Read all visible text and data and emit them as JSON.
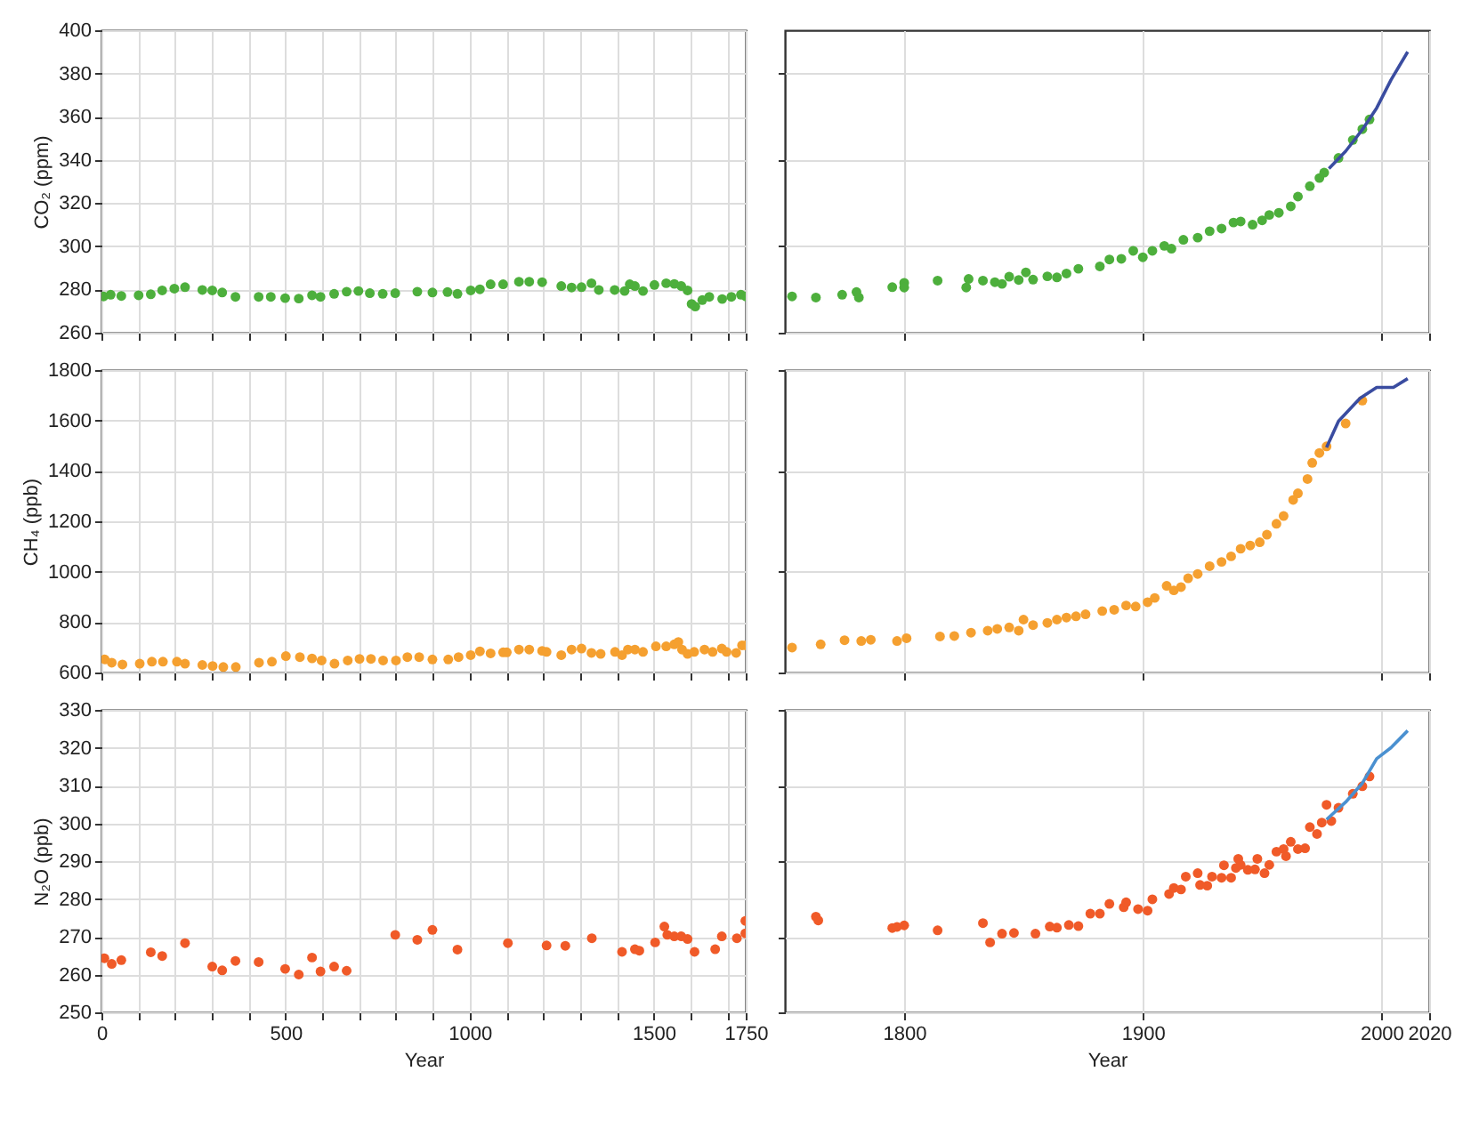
{
  "chart_data": [
    {
      "type": "scatter",
      "ylabel": "CO₂ (ppm)",
      "xlim": [
        0,
        1750
      ],
      "xticks": [
        0,
        {
          "value": 100,
          "label": null
        },
        {
          "value": 200,
          "label": null
        },
        {
          "value": 300,
          "label": null
        },
        {
          "value": 400,
          "label": null
        },
        500,
        {
          "value": 600,
          "label": null
        },
        {
          "value": 700,
          "label": null
        },
        {
          "value": 800,
          "label": null
        },
        {
          "value": 900,
          "label": null
        },
        1000,
        {
          "value": 1100,
          "label": null
        },
        {
          "value": 1200,
          "label": null
        },
        {
          "value": 1300,
          "label": null
        },
        {
          "value": 1400,
          "label": null
        },
        1500,
        {
          "value": 1600,
          "label": null
        },
        {
          "value": 1700,
          "label": null
        },
        1750
      ],
      "ylim": [
        260,
        400
      ],
      "yticks": [
        260,
        280,
        300,
        320,
        340,
        360,
        380,
        400
      ],
      "grid": true,
      "tick_labels": "y",
      "marker": "circle",
      "series": [
        {
          "type": "scatter",
          "color": "#4daf3c",
          "x": [
            6,
            25,
            54,
            101,
            134,
            165,
            198,
            227,
            274,
            301,
            328,
            364,
            427,
            460,
            499,
            536,
            572,
            595,
            632,
            666,
            698,
            729,
            764,
            798,
            858,
            899,
            940,
            967,
            1003,
            1028,
            1057,
            1091,
            1134,
            1162,
            1197,
            1249,
            1277,
            1304,
            1331,
            1351,
            1394,
            1421,
            1435,
            1449,
            1471,
            1502,
            1534,
            1556,
            1575,
            1592,
            1603,
            1613,
            1632,
            1651,
            1686,
            1711,
            1737,
            1750
          ],
          "values": [
            276.8,
            277.6,
            277,
            277.3,
            277.8,
            279.6,
            280.4,
            281.1,
            279.8,
            279.6,
            278.6,
            276.6,
            276.6,
            276.6,
            276,
            275.8,
            277.3,
            276.6,
            278,
            279,
            279.3,
            278.3,
            278,
            278.3,
            279,
            278.6,
            278.8,
            278,
            279.6,
            280.1,
            282.4,
            282.4,
            283.6,
            283.6,
            283.4,
            281.6,
            280.9,
            281.1,
            282.9,
            279.8,
            279.8,
            279.3,
            282.4,
            281.6,
            279.3,
            282.1,
            282.9,
            282.6,
            281.6,
            279.6,
            273.3,
            272.1,
            275.1,
            276.6,
            275.6,
            276.6,
            277.6,
            276.8
          ]
        }
      ]
    },
    {
      "type": "scatter",
      "xlim": [
        1750,
        2020
      ],
      "xticks": [
        1800,
        1900,
        2000,
        2020
      ],
      "ylim": [
        260,
        400
      ],
      "yticks": [
        260,
        280,
        300,
        320,
        340,
        360,
        380,
        400
      ],
      "grid": true,
      "tick_labels": false,
      "marker": "circle",
      "series": [
        {
          "type": "scatter",
          "color": "#4daf3c",
          "x": [
            1753,
            1763,
            1774,
            1780,
            1781,
            1795,
            1800,
            1800,
            1814,
            1826,
            1827,
            1833,
            1838,
            1841,
            1844,
            1848,
            1851,
            1854,
            1860,
            1864,
            1868,
            1873,
            1882,
            1886,
            1891,
            1896,
            1900,
            1904,
            1909,
            1912,
            1917,
            1923,
            1928,
            1933,
            1938,
            1941,
            1946,
            1950,
            1953,
            1957,
            1962,
            1965,
            1970,
            1974,
            1976,
            1982,
            1988,
            1992,
            1995
          ],
          "values": [
            276.8,
            276.3,
            277.6,
            278.8,
            276.3,
            281.1,
            283.1,
            280.9,
            284.1,
            280.9,
            284.9,
            284.1,
            283.4,
            282.6,
            285.9,
            284.4,
            287.9,
            284.6,
            286.1,
            285.6,
            287.4,
            289.6,
            290.7,
            293.9,
            294.2,
            297.9,
            294.9,
            297.9,
            300.2,
            298.9,
            303,
            304,
            307,
            308.2,
            311,
            311.5,
            310,
            312,
            314.5,
            315.5,
            318.5,
            323,
            327.8,
            331.6,
            334.1,
            340.9,
            349.2,
            354.2,
            358.7
          ]
        },
        {
          "type": "line",
          "marker": "none",
          "color": "#3a4ca0",
          "x": [
            1978,
            1985,
            1992,
            1998,
            2004,
            2011
          ],
          "values": [
            336,
            344,
            354,
            364,
            377,
            390
          ]
        }
      ]
    },
    {
      "type": "scatter",
      "ylabel": "CH₄ (ppb)",
      "xlim": [
        0,
        1750
      ],
      "xticks": [
        0,
        {
          "value": 100,
          "label": null
        },
        {
          "value": 200,
          "label": null
        },
        {
          "value": 300,
          "label": null
        },
        {
          "value": 400,
          "label": null
        },
        500,
        {
          "value": 600,
          "label": null
        },
        {
          "value": 700,
          "label": null
        },
        {
          "value": 800,
          "label": null
        },
        {
          "value": 900,
          "label": null
        },
        1000,
        {
          "value": 1100,
          "label": null
        },
        {
          "value": 1200,
          "label": null
        },
        {
          "value": 1300,
          "label": null
        },
        {
          "value": 1400,
          "label": null
        },
        1500,
        {
          "value": 1600,
          "label": null
        },
        {
          "value": 1700,
          "label": null
        },
        1750
      ],
      "ylim": [
        600,
        1800
      ],
      "yticks": [
        600,
        800,
        1000,
        1200,
        1400,
        1600,
        1800
      ],
      "grid": true,
      "tick_labels": "y",
      "marker": "circle",
      "series": [
        {
          "type": "scatter",
          "color": "#f5a030",
          "x": [
            9,
            28,
            57,
            104,
            137,
            167,
            205,
            227,
            274,
            302,
            331,
            365,
            428,
            463,
            501,
            539,
            572,
            598,
            633,
            669,
            701,
            732,
            765,
            800,
            831,
            863,
            899,
            942,
            970,
            1003,
            1028,
            1057,
            1091,
            1101,
            1134,
            1162,
            1197,
            1209,
            1249,
            1277,
            1304,
            1331,
            1356,
            1395,
            1414,
            1430,
            1449,
            1471,
            1506,
            1534,
            1556,
            1567,
            1577,
            1592,
            1610,
            1638,
            1660,
            1685,
            1698,
            1724,
            1740,
            1750
          ],
          "values": [
            652,
            639,
            632,
            635,
            643,
            643,
            643,
            635,
            630,
            626,
            622,
            622,
            639,
            643,
            665,
            661,
            656,
            648,
            635,
            648,
            654,
            654,
            648,
            648,
            661,
            661,
            652,
            652,
            661,
            669,
            684,
            676,
            680,
            680,
            691,
            691,
            686,
            682,
            669,
            691,
            695,
            678,
            674,
            682,
            669,
            691,
            691,
            682,
            704,
            704,
            712,
            721,
            691,
            674,
            682,
            691,
            682,
            695,
            682,
            678,
            708,
            708
          ]
        }
      ]
    },
    {
      "type": "scatter",
      "xlim": [
        1750,
        2020
      ],
      "xticks": [
        1800,
        1900,
        2000,
        2020
      ],
      "ylim": [
        600,
        1800
      ],
      "yticks": [
        600,
        800,
        1000,
        1200,
        1400,
        1600,
        1800
      ],
      "grid": true,
      "tick_labels": false,
      "marker": "circle",
      "series": [
        {
          "type": "scatter",
          "color": "#f5a030",
          "x": [
            1753,
            1765,
            1775,
            1782,
            1786,
            1797,
            1801,
            1815,
            1821,
            1828,
            1835,
            1839,
            1844,
            1848,
            1850,
            1854,
            1860,
            1864,
            1868,
            1872,
            1876,
            1883,
            1888,
            1893,
            1897,
            1902,
            1905,
            1910,
            1913,
            1916,
            1919,
            1923,
            1928,
            1933,
            1937,
            1941,
            1945,
            1949,
            1952,
            1956,
            1959,
            1963,
            1965,
            1969,
            1971,
            1974,
            1977,
            1985,
            1992
          ],
          "values": [
            699,
            712,
            728,
            725,
            730,
            725,
            736,
            743,
            745,
            758,
            766,
            773,
            779,
            766,
            810,
            788,
            797,
            810,
            818,
            823,
            831,
            844,
            849,
            866,
            862,
            879,
            896,
            944,
            926,
            939,
            974,
            991,
            1022,
            1039,
            1061,
            1091,
            1104,
            1117,
            1147,
            1190,
            1221,
            1285,
            1311,
            1368,
            1432,
            1471,
            1497,
            1588,
            1679
          ]
        },
        {
          "type": "line",
          "marker": "none",
          "color": "#3a4ca0",
          "x": [
            1977,
            1982,
            1991,
            1998,
            2005,
            2011
          ],
          "values": [
            1493,
            1597,
            1688,
            1731,
            1731,
            1766
          ]
        }
      ]
    },
    {
      "type": "scatter",
      "xlabel": "Year",
      "ylabel": "N₂O (ppb)",
      "xlim": [
        0,
        1750
      ],
      "xticks": [
        0,
        {
          "value": 100,
          "label": null
        },
        {
          "value": 200,
          "label": null
        },
        {
          "value": 300,
          "label": null
        },
        {
          "value": 400,
          "label": null
        },
        500,
        {
          "value": 600,
          "label": null
        },
        {
          "value": 700,
          "label": null
        },
        {
          "value": 800,
          "label": null
        },
        {
          "value": 900,
          "label": null
        },
        1000,
        {
          "value": 1100,
          "label": null
        },
        {
          "value": 1200,
          "label": null
        },
        {
          "value": 1300,
          "label": null
        },
        {
          "value": 1400,
          "label": null
        },
        1500,
        {
          "value": 1600,
          "label": null
        },
        {
          "value": 1700,
          "label": null
        },
        1750
      ],
      "ylim": [
        250,
        330
      ],
      "yticks": [
        250,
        260,
        270,
        280,
        290,
        300,
        310,
        320,
        330
      ],
      "grid": true,
      "marker": "circle",
      "series": [
        {
          "type": "scatter",
          "color": "#f05a28",
          "x": [
            8,
            28,
            54,
            134,
            165,
            227,
            301,
            328,
            364,
            427,
            499,
            536,
            572,
            595,
            632,
            666,
            798,
            858,
            899,
            967,
            1104,
            1209,
            1260,
            1332,
            1414,
            1449,
            1461,
            1504,
            1529,
            1537,
            1556,
            1575,
            1592,
            1611,
            1667,
            1685,
            1726,
            1749,
            1749
          ],
          "values": [
            264.3,
            262.8,
            263.8,
            265.9,
            264.9,
            268.3,
            262.1,
            261.1,
            263.6,
            263.3,
            261.5,
            260,
            264.5,
            260.8,
            262.1,
            261,
            270.5,
            269.2,
            271.8,
            266.6,
            268.3,
            267.7,
            267.6,
            269.6,
            266,
            266.7,
            266.3,
            268.5,
            272.7,
            270.5,
            270.1,
            270.1,
            269.4,
            266,
            266.7,
            270.1,
            269.6,
            270.9,
            274.2
          ]
        }
      ]
    },
    {
      "type": "scatter",
      "xlabel": "Year",
      "xlim": [
        1750,
        2020
      ],
      "xticks": [
        1800,
        1900,
        2000,
        2020
      ],
      "ylim": [
        250,
        330
      ],
      "yticks": [
        250,
        260,
        270,
        280,
        290,
        300,
        310,
        320,
        330
      ],
      "grid": true,
      "tick_labels": "x",
      "marker": "circle",
      "series": [
        {
          "type": "scatter",
          "color": "#f05a28",
          "x": [
            1763,
            1764,
            1795,
            1797,
            1800,
            1814,
            1833,
            1836,
            1841,
            1846,
            1855,
            1861,
            1864,
            1869,
            1873,
            1878,
            1882,
            1886,
            1892,
            1893,
            1898,
            1902,
            1904,
            1911,
            1913,
            1916,
            1918,
            1923,
            1924,
            1927,
            1929,
            1933,
            1934,
            1937,
            1939,
            1940,
            1941,
            1944,
            1947,
            1948,
            1951,
            1953,
            1956,
            1959,
            1960,
            1962,
            1965,
            1968,
            1970,
            1973,
            1975,
            1977,
            1979,
            1982,
            1988,
            1992,
            1995
          ],
          "values": [
            275.3,
            274.3,
            272.3,
            272.6,
            273,
            271.7,
            273.6,
            268.5,
            270.8,
            271,
            270.8,
            272.7,
            272.4,
            273.1,
            272.8,
            276.1,
            276.1,
            278.7,
            277.8,
            279.1,
            277.3,
            276.9,
            279.9,
            281.3,
            282.9,
            282.5,
            285.9,
            286.8,
            283.7,
            283.5,
            285.9,
            285.6,
            288.9,
            285.6,
            288.2,
            290.6,
            289,
            287.7,
            287.8,
            290.6,
            286.8,
            289,
            292.5,
            293.2,
            291.3,
            295.1,
            293.2,
            293.4,
            299,
            297.2,
            300.2,
            304.9,
            300.6,
            304.1,
            307.8,
            309.8,
            312.4
          ]
        },
        {
          "type": "line",
          "marker": "none",
          "color": "#4a90d0",
          "x": [
            1977,
            1985,
            1992,
            1998,
            2004,
            2011
          ],
          "values": [
            301,
            305.6,
            310.6,
            317.1,
            320,
            324.5
          ]
        }
      ]
    }
  ]
}
